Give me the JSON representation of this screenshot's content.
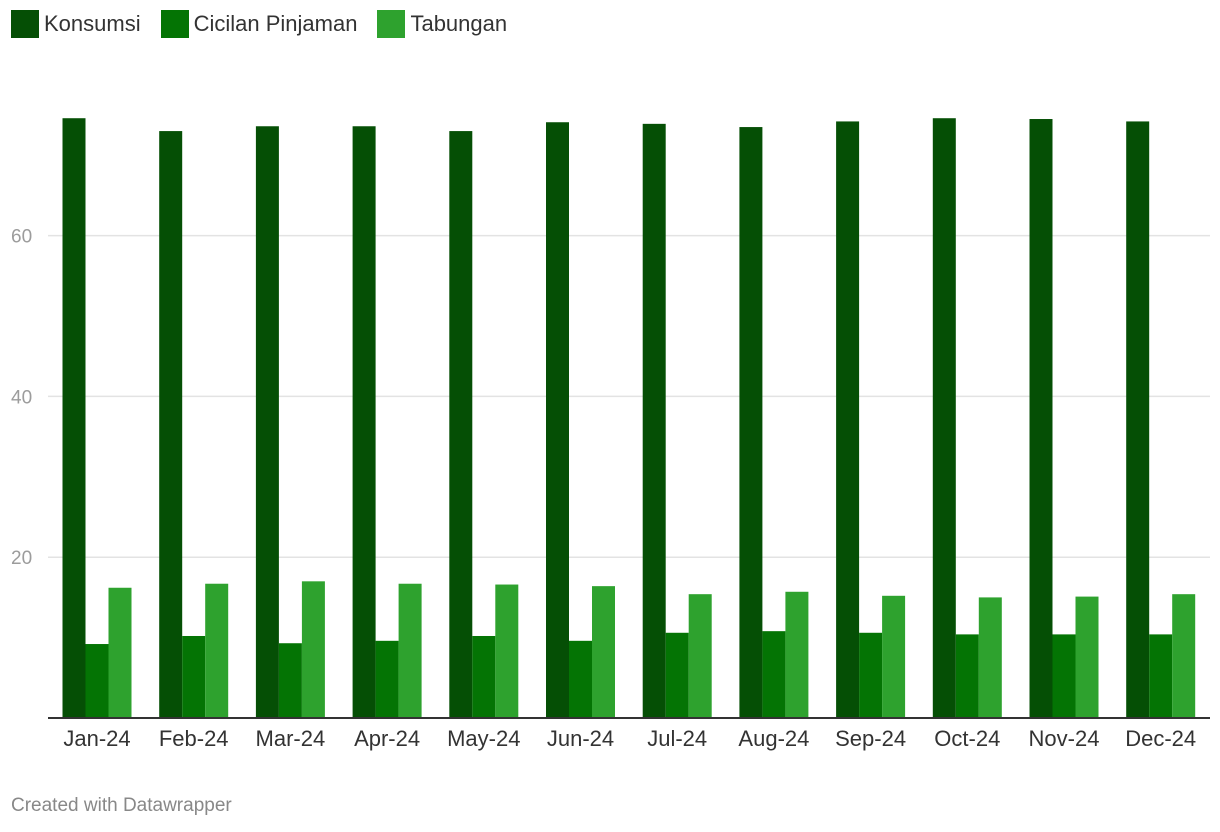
{
  "chart_data": {
    "type": "bar",
    "categories": [
      "Jan-24",
      "Feb-24",
      "Mar-24",
      "Apr-24",
      "May-24",
      "Jun-24",
      "Jul-24",
      "Aug-24",
      "Sep-24",
      "Oct-24",
      "Nov-24",
      "Dec-24"
    ],
    "series": [
      {
        "name": "Konsumsi",
        "color": "#054f05",
        "values": [
          74.6,
          73.0,
          73.6,
          73.6,
          73.0,
          74.1,
          73.9,
          73.5,
          74.2,
          74.6,
          74.5,
          74.2
        ]
      },
      {
        "name": "Cicilan Pinjaman",
        "color": "#047404",
        "values": [
          9.2,
          10.2,
          9.3,
          9.6,
          10.2,
          9.6,
          10.6,
          10.8,
          10.6,
          10.4,
          10.4,
          10.4
        ]
      },
      {
        "name": "Tabungan",
        "color": "#2ea22e",
        "values": [
          16.2,
          16.7,
          17.0,
          16.7,
          16.6,
          16.4,
          15.4,
          15.7,
          15.2,
          15.0,
          15.1,
          15.4
        ]
      }
    ],
    "title": "",
    "xlabel": "",
    "ylabel": "",
    "ylim": [
      0,
      75
    ],
    "yticks": [
      20,
      40,
      60
    ],
    "grid": true,
    "legend_position": "top-left"
  },
  "footer": {
    "credit": "Created with Datawrapper"
  }
}
